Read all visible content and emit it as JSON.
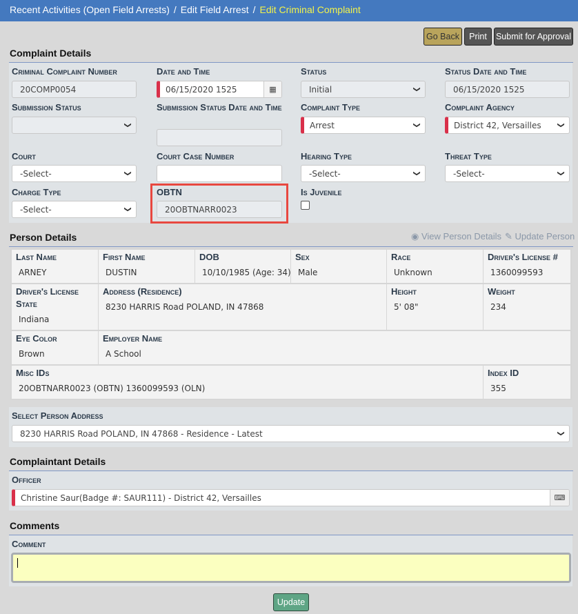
{
  "breadcrumb": {
    "items": [
      "Recent Activities (Open Field Arrests)",
      "Edit Field Arrest"
    ],
    "current": "Edit Criminal Complaint"
  },
  "toolbar": {
    "go_back": "Go Back",
    "print": "Print",
    "submit": "Submit for Approval"
  },
  "complaint": {
    "title": "Complaint Details",
    "fields": {
      "number": {
        "label": "Criminal Complaint Number",
        "value": "20COMP0054"
      },
      "datetime": {
        "label": "Date and Time",
        "value": "06/15/2020 1525"
      },
      "status": {
        "label": "Status",
        "value": "Initial"
      },
      "status_datetime": {
        "label": "Status Date and Time",
        "value": "06/15/2020 1525"
      },
      "submission_status": {
        "label": "Submission Status",
        "value": ""
      },
      "submission_datetime": {
        "label": "Submission Status Date and Time",
        "value": ""
      },
      "complaint_type": {
        "label": "Complaint Type",
        "value": "Arrest"
      },
      "agency": {
        "label": "Complaint Agency",
        "value": "District 42, Versailles"
      },
      "court": {
        "label": "Court",
        "value": "-Select-"
      },
      "court_case": {
        "label": "Court Case Number",
        "value": ""
      },
      "hearing_type": {
        "label": "Hearing Type",
        "value": "-Select-"
      },
      "threat_type": {
        "label": "Threat Type",
        "value": "-Select-"
      },
      "charge_type": {
        "label": "Charge Type",
        "value": "-Select-"
      },
      "obtn": {
        "label": "OBTN",
        "value": "20OBTNARR0023"
      },
      "juvenile": {
        "label": "Is Juvenile",
        "checked": false
      }
    }
  },
  "person": {
    "title": "Person Details",
    "view_link": "View Person Details",
    "update_link": "Update Person",
    "last_name": {
      "label": "Last Name",
      "value": "ARNEY"
    },
    "first_name": {
      "label": "First Name",
      "value": "DUSTIN"
    },
    "dob": {
      "label": "DOB",
      "value": "10/10/1985 (Age: 34)"
    },
    "sex": {
      "label": "Sex",
      "value": "Male"
    },
    "race": {
      "label": "Race",
      "value": "Unknown"
    },
    "dl": {
      "label": "Driver's License #",
      "value": "1360099593"
    },
    "dl_state": {
      "label": "Driver's License State",
      "value": "Indiana"
    },
    "address": {
      "label": "Address (Residence)",
      "value": "8230 HARRIS Road POLAND, IN 47868"
    },
    "height": {
      "label": "Height",
      "value": "5' 08\""
    },
    "weight": {
      "label": "Weight",
      "value": "234"
    },
    "eye": {
      "label": "Eye Color",
      "value": "Brown"
    },
    "employer": {
      "label": "Employer Name",
      "value": "A School"
    },
    "misc": {
      "label": "Misc IDs",
      "value": "20OBTNARR0023 (OBTN) 1360099593 (OLN)"
    },
    "index": {
      "label": "Index ID",
      "value": "355"
    },
    "select_address": {
      "label": "Select Person Address",
      "value": "8230 HARRIS Road POLAND, IN 47868 - Residence - Latest"
    }
  },
  "complainant": {
    "title": "Complaintant Details",
    "officer_label": "Officer",
    "officer_value": "Christine Saur(Badge #: SAUR111) - District 42, Versailles"
  },
  "comments": {
    "title": "Comments",
    "label": "Comment",
    "value": ""
  },
  "update_button": "Update",
  "colors": {
    "header": "#4479bf",
    "breadcrumb_current": "#f3f34a",
    "required": "#d9304a",
    "highlight": "#e8473f",
    "comment_bg": "#fbffc0"
  }
}
